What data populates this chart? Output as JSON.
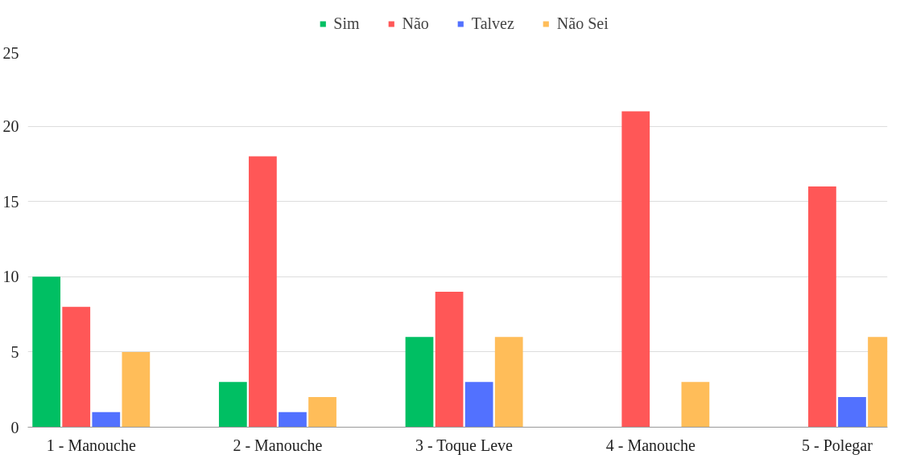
{
  "chart_data": {
    "type": "bar",
    "categories": [
      "1 - Manouche",
      "2 - Manouche",
      "3 - Toque Leve",
      "4 - Manouche",
      "5 - Polegar"
    ],
    "series": [
      {
        "name": "Sim",
        "color": "#00bf63",
        "values": [
          10,
          3,
          6,
          0,
          0
        ]
      },
      {
        "name": "Não",
        "color": "#ff5757",
        "values": [
          8,
          18,
          9,
          21,
          16
        ]
      },
      {
        "name": "Talvez",
        "color": "#5271ff",
        "values": [
          1,
          1,
          3,
          0,
          2
        ]
      },
      {
        "name": "Não Sei",
        "color": "#ffbd59",
        "values": [
          5,
          2,
          6,
          3,
          6
        ]
      }
    ],
    "ylim": [
      0,
      25
    ],
    "yticks": [
      0,
      5,
      10,
      15,
      20,
      25
    ],
    "grid": "y",
    "legend": "top"
  }
}
